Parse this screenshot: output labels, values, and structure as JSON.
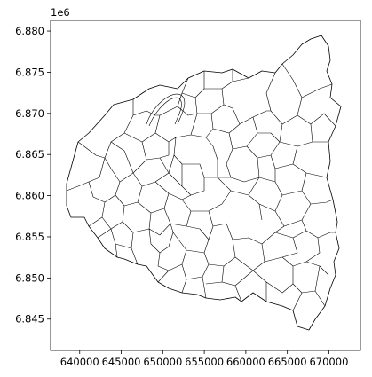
{
  "chart_data": {
    "type": "map",
    "title": "",
    "xlabel": "",
    "ylabel": "",
    "y_offset_text": "1e6",
    "xlim": [
      636500,
      673800
    ],
    "ylim": [
      6841200,
      6881300
    ],
    "x_ticks": [
      640000,
      645000,
      650000,
      655000,
      660000,
      665000,
      670000
    ],
    "x_tick_labels": [
      "640000",
      "645000",
      "650000",
      "655000",
      "660000",
      "665000",
      "670000"
    ],
    "y_ticks": [
      6845000,
      6850000,
      6855000,
      6860000,
      6865000,
      6870000,
      6875000,
      6880000
    ],
    "y_tick_labels": [
      "6.845",
      "6.850",
      "6.855",
      "6.860",
      "6.865",
      "6.870",
      "6.875",
      "6.880"
    ],
    "grid": false,
    "feature": "municipal boundaries (polygons)",
    "fill_color": "#ffffff",
    "edge_color": "#000000"
  }
}
